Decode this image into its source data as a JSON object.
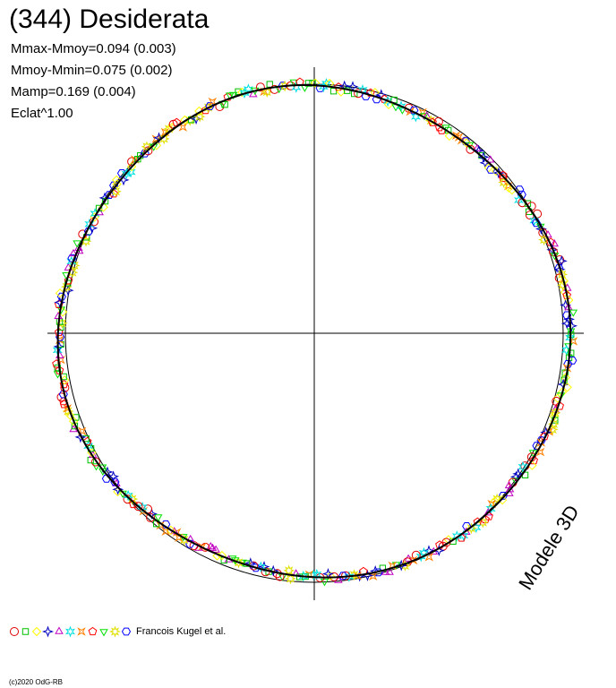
{
  "chart_data": {
    "type": "scatter",
    "title": "(344) Desiderata",
    "annotations": [
      "Mmax-Mmoy=0.094 (0.003)",
      "Mmoy-Mmin=0.075 (0.002)",
      "Mamp=0.169 (0.004)",
      "Eclat^1.00"
    ],
    "model_label": "Modele 3D",
    "legend_author": "Francois Kugel et al.",
    "copyright": "(c)2020 OdG-RB",
    "grid": false,
    "legend_position": "bottom-left",
    "reference_circle": true,
    "series": [
      {
        "marker": "circle",
        "color": "#e00000"
      },
      {
        "marker": "square",
        "color": "#00c000"
      },
      {
        "marker": "diamond",
        "color": "#ffff00"
      },
      {
        "marker": "star4",
        "color": "#0000c0"
      },
      {
        "marker": "triangle",
        "color": "#c000c0"
      },
      {
        "marker": "star6",
        "color": "#00e0e0"
      },
      {
        "marker": "cross",
        "color": "#ff8000"
      },
      {
        "marker": "pentagon",
        "color": "#ff0000"
      },
      {
        "marker": "triangle-down",
        "color": "#00e000"
      },
      {
        "marker": "hexstar",
        "color": "#e0e000"
      },
      {
        "marker": "hexagon",
        "color": "#0000ff"
      }
    ]
  }
}
